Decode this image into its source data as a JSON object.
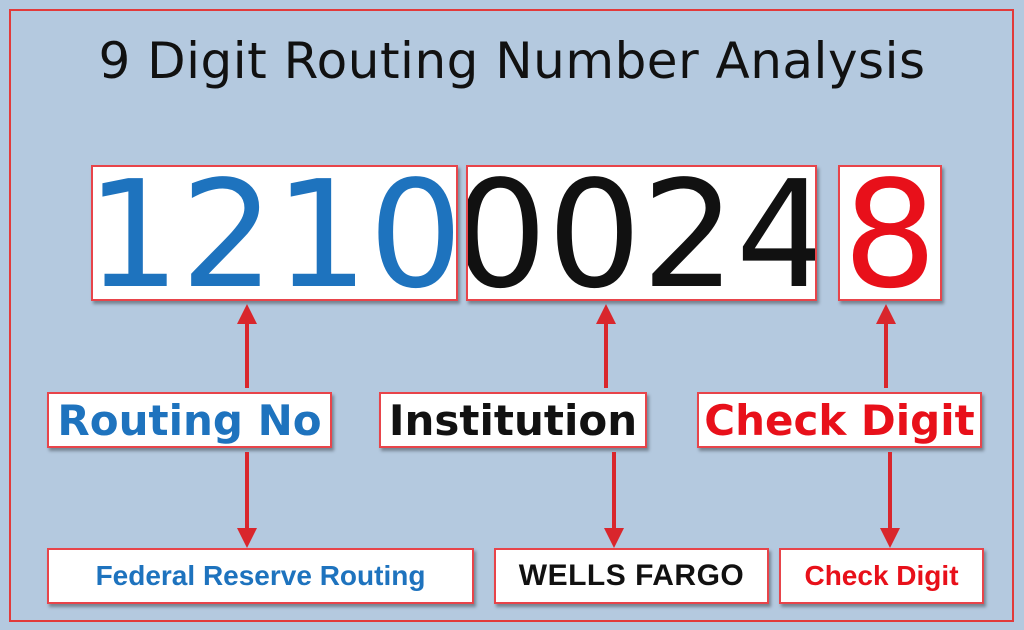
{
  "title": "9 Digit Routing Number Analysis",
  "colors": {
    "background": "#b4c9df",
    "border": "#e23a3a",
    "blue": "#1e73be",
    "black": "#111111",
    "red": "#e8101a",
    "arrow": "#d9262c"
  },
  "segments": [
    {
      "digits": "1210",
      "label": "Routing No",
      "result": "Federal Reserve Routing"
    },
    {
      "digits": "0024",
      "label": "Institution",
      "result": "WELLS FARGO"
    },
    {
      "digits": "8",
      "label": "Check Digit",
      "result": "Check Digit"
    }
  ]
}
